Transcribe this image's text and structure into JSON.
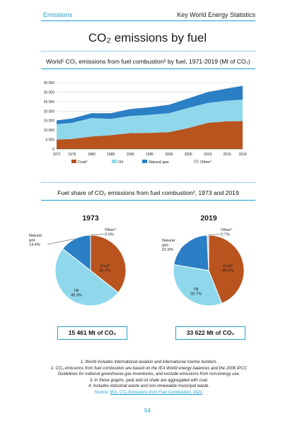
{
  "header": {
    "section": "Emissions",
    "publication": "Key World Energy Statistics"
  },
  "page_title": "CO₂ emissions by fuel",
  "colors": {
    "coal": "#b9541f",
    "oil": "#8fd8ec",
    "natural_gas": "#2b7fc5",
    "other": "#c8cdd1",
    "accent": "#1a9fd6"
  },
  "area_title": "World¹ CO₂ emissions from fuel combustion² by fuel, 1971-2019 (Mt of CO₂)",
  "pie_title": "Fuel share of CO₂ emissions from fuel combustion², 1973 and 2019",
  "totals": {
    "y1973": "15 461 Mt of CO₂",
    "y2019": "33 622 Mt of CO₂"
  },
  "notes": {
    "n1": "1. World includes international aviation and international marine bunkers.",
    "n2": "2. CO₂ emissions from fuel combustion are based on the IEA World energy balances and the 2006 IPCC Guidelines for national greenhouse gas inventories, and exclude emissions from non-energy use.",
    "n3": "3. In these graphs, peat and oil shale are aggregated with coal.",
    "n4": "4. Includes industrial waste and non-renewable municipal waste.",
    "source_prefix": "Source:",
    "source_link": "IEA, CO₂ Emissions from Fuel Combustion, 2021",
    "source_suffix": "."
  },
  "page_number": "54",
  "chart_data": [
    {
      "type": "area",
      "stacked": true,
      "title": "World¹ CO₂ emissions from fuel combustion² by fuel, 1971-2019 (Mt of CO₂)",
      "xlabel": "",
      "ylabel": "",
      "x": [
        1971,
        1975,
        1980,
        1985,
        1990,
        1995,
        2000,
        2005,
        2010,
        2015,
        2019
      ],
      "x_tick_labels": [
        "1971",
        "1975",
        "1980",
        "1985",
        "1990",
        "1995",
        "2000",
        "2005",
        "2010",
        "2015",
        "2019"
      ],
      "y_ticks": [
        0,
        5000,
        10000,
        15000,
        20000,
        25000,
        30000,
        35000
      ],
      "y_tick_labels": [
        "0",
        "5 000",
        "10 000",
        "15 000",
        "20 000",
        "25 000",
        "30 000",
        "35 000"
      ],
      "ylim": [
        0,
        35000
      ],
      "grid": "horizontal",
      "legend": "bottom",
      "series": [
        {
          "name": "Coal³",
          "color_key": "coal",
          "values": [
            5000,
            5300,
            6600,
            7300,
            8400,
            8500,
            8900,
            11100,
            13800,
            14600,
            14700
          ]
        },
        {
          "name": "Oil",
          "color_key": "oil",
          "values": [
            8100,
            8500,
            9700,
            8600,
            9000,
            9500,
            10000,
            10600,
            10500,
            10900,
            11300
          ]
        },
        {
          "name": "Natural gas",
          "color_key": "natural_gas",
          "values": [
            2000,
            2300,
            2600,
            3000,
            3700,
            4000,
            4400,
            5000,
            5700,
            6400,
            7300
          ]
        },
        {
          "name": "Other⁴",
          "color_key": "other",
          "values": [
            20,
            20,
            20,
            30,
            40,
            60,
            80,
            120,
            160,
            200,
            250
          ]
        }
      ]
    },
    {
      "type": "pie",
      "title": "1973",
      "slices": [
        {
          "name": "Coal³",
          "value": 35.7,
          "label": "Coal³\n35.7%",
          "color_key": "coal"
        },
        {
          "name": "Oil",
          "value": 49.9,
          "label": "Oil\n49.9%",
          "color_key": "oil"
        },
        {
          "name": "Natural gas",
          "value": 14.4,
          "label": "Natural\ngas\n14.4%",
          "color_key": "natural_gas"
        },
        {
          "name": "Other⁴",
          "value": 0.0,
          "label": "Other⁴\n0.0%",
          "color_key": "other"
        }
      ]
    },
    {
      "type": "pie",
      "title": "2019",
      "slices": [
        {
          "name": "Coal³",
          "value": 44.0,
          "label": "Coal³\n44.0%",
          "color_key": "coal"
        },
        {
          "name": "Oil",
          "value": 33.7,
          "label": "Oil\n33.7%",
          "color_key": "oil"
        },
        {
          "name": "Natural gas",
          "value": 21.6,
          "label": "Natural\ngas\n21.6%",
          "color_key": "natural_gas"
        },
        {
          "name": "Other⁴",
          "value": 0.7,
          "label": "Other⁴\n0.7%",
          "color_key": "other"
        }
      ]
    }
  ]
}
